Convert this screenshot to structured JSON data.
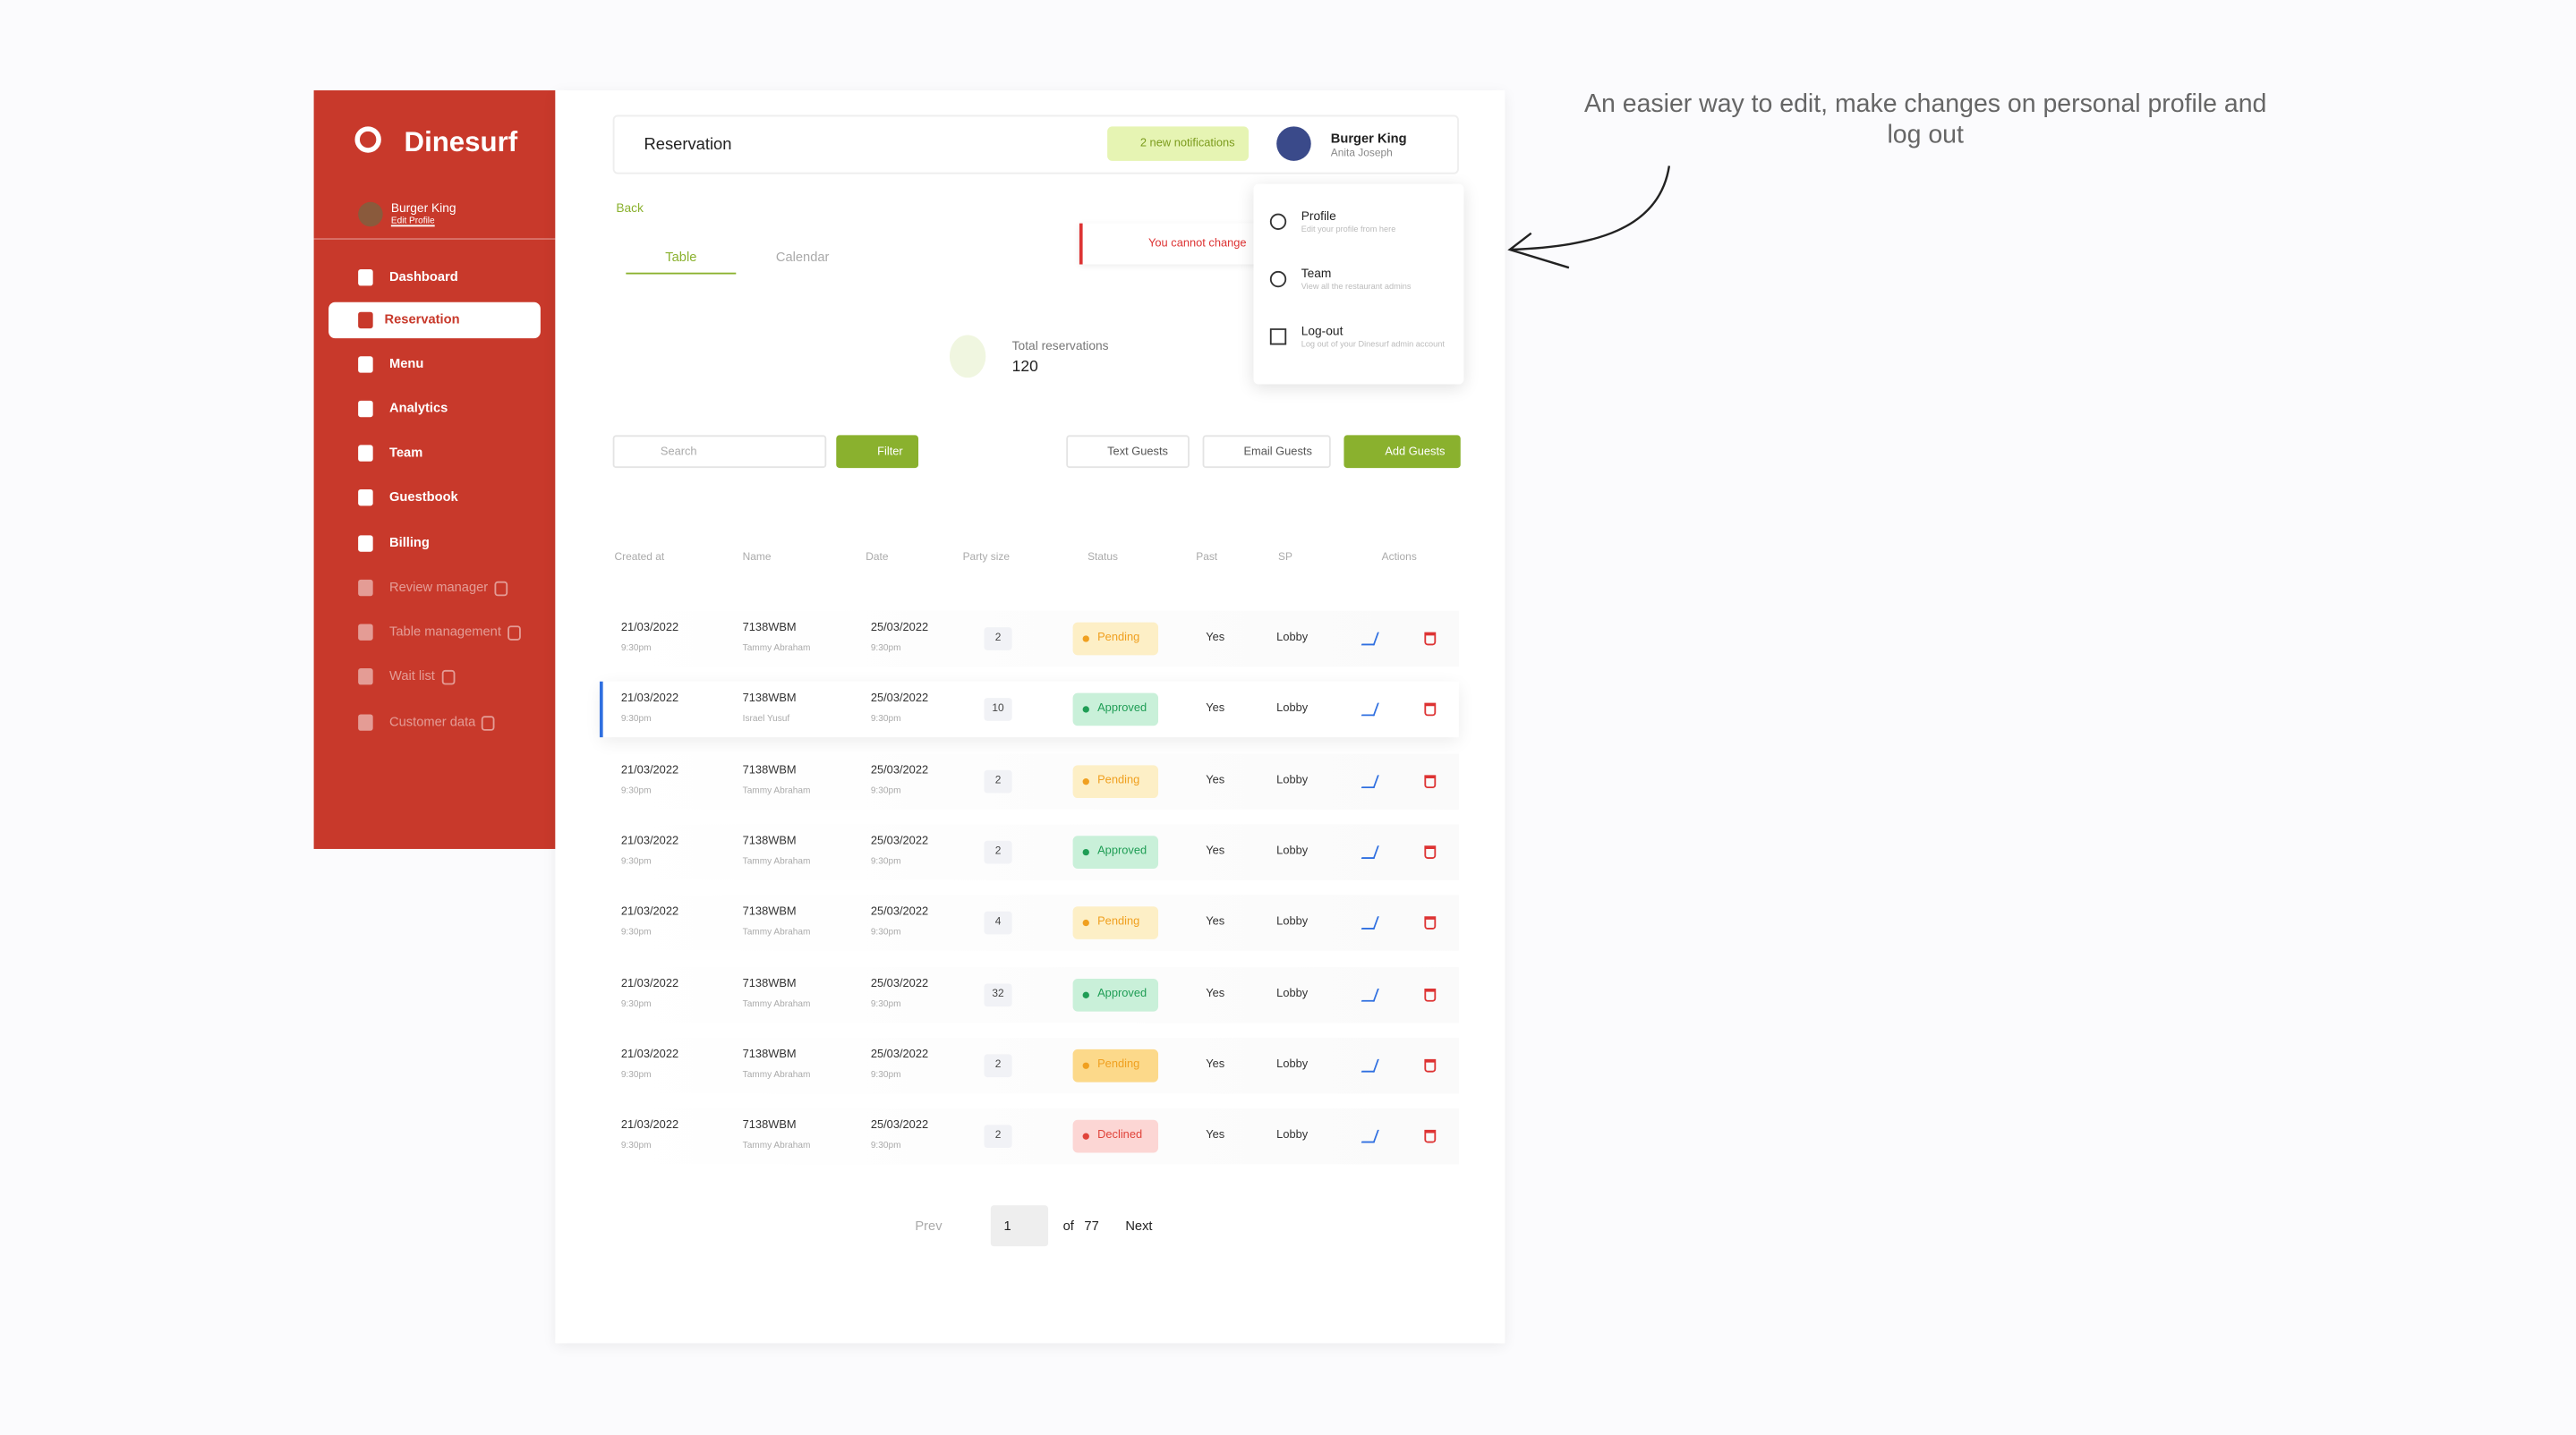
{
  "sidebar": {
    "brand": "Dinesurf",
    "user": "Burger King",
    "edit": "Edit Profile",
    "nav": [
      {
        "label": "Dashboard"
      },
      {
        "label": "Reservation",
        "active": true
      },
      {
        "label": "Menu"
      },
      {
        "label": "Analytics"
      },
      {
        "label": "Team"
      },
      {
        "label": "Guestbook"
      },
      {
        "label": "Billing"
      },
      {
        "label": "Review manager",
        "locked": true
      },
      {
        "label": "Table management",
        "locked": true
      },
      {
        "label": "Wait list",
        "locked": true
      },
      {
        "label": "Customer data",
        "locked": true
      }
    ]
  },
  "header": {
    "title": "Reservation",
    "notifications": "2 new notifications",
    "user": "Burger King",
    "role": "Anita Joseph"
  },
  "dropdown": [
    {
      "title": "Profile",
      "desc": "Edit your profile from here"
    },
    {
      "title": "Team",
      "desc": "View all the restaurant admins"
    },
    {
      "title": "Log-out",
      "desc": "Log out of your Dinesurf admin account"
    }
  ],
  "back": "Back",
  "tabs": [
    "Table",
    "Calendar"
  ],
  "alert": "You cannot change",
  "total": {
    "label": "Total reservations",
    "value": 120
  },
  "toolbar": {
    "search": "Search",
    "filter": "Filter",
    "text": "Text Guests",
    "email": "Email Guests",
    "add": "Add Guests"
  },
  "table": {
    "columns": [
      "Created at",
      "Name",
      "Date",
      "Party size",
      "Status",
      "Past",
      "SP",
      "Actions"
    ],
    "rows": [
      {
        "created": "21/03/2022",
        "created_time": "9:30pm",
        "code": "7138WBM",
        "guest": "Tammy Abraham",
        "date": "25/03/2022",
        "time": "9:30pm",
        "party": 2,
        "status": "Pending",
        "status_color": "#f0a020",
        "status_bg": "#fdefc6",
        "past": "Yes",
        "sp": "Lobby"
      },
      {
        "created": "21/03/2022",
        "created_time": "9:30pm",
        "code": "7138WBM",
        "guest": "Israel Yusuf",
        "date": "25/03/2022",
        "time": "9:30pm",
        "party": 10,
        "status": "Approved",
        "status_color": "#1f9d55",
        "status_bg": "#c9f0d9",
        "past": "Yes",
        "sp": "Lobby",
        "highlighted": true
      },
      {
        "created": "21/03/2022",
        "created_time": "9:30pm",
        "code": "7138WBM",
        "guest": "Tammy Abraham",
        "date": "25/03/2022",
        "time": "9:30pm",
        "party": 2,
        "status": "Pending",
        "status_color": "#f0a020",
        "status_bg": "#fdefc6",
        "past": "Yes",
        "sp": "Lobby"
      },
      {
        "created": "21/03/2022",
        "created_time": "9:30pm",
        "code": "7138WBM",
        "guest": "Tammy Abraham",
        "date": "25/03/2022",
        "time": "9:30pm",
        "party": 2,
        "status": "Approved",
        "status_color": "#1f9d55",
        "status_bg": "#c9f0d9",
        "past": "Yes",
        "sp": "Lobby"
      },
      {
        "created": "21/03/2022",
        "created_time": "9:30pm",
        "code": "7138WBM",
        "guest": "Tammy Abraham",
        "date": "25/03/2022",
        "time": "9:30pm",
        "party": 4,
        "status": "Pending",
        "status_color": "#f0a020",
        "status_bg": "#fdefc6",
        "past": "Yes",
        "sp": "Lobby"
      },
      {
        "created": "21/03/2022",
        "created_time": "9:30pm",
        "code": "7138WBM",
        "guest": "Tammy Abraham",
        "date": "25/03/2022",
        "time": "9:30pm",
        "party": 32,
        "status": "Approved",
        "status_color": "#1f9d55",
        "status_bg": "#c9f0d9",
        "past": "Yes",
        "sp": "Lobby"
      },
      {
        "created": "21/03/2022",
        "created_time": "9:30pm",
        "code": "7138WBM",
        "guest": "Tammy Abraham",
        "date": "25/03/2022",
        "time": "9:30pm",
        "party": 2,
        "status": "Pending",
        "status_color": "#f0a020",
        "status_bg": "#fcd98a",
        "past": "Yes",
        "sp": "Lobby"
      },
      {
        "created": "21/03/2022",
        "created_time": "9:30pm",
        "code": "7138WBM",
        "guest": "Tammy Abraham",
        "date": "25/03/2022",
        "time": "9:30pm",
        "party": 2,
        "status": "Declined",
        "status_color": "#e0433a",
        "status_bg": "#fcd6d4",
        "past": "Yes",
        "sp": "Lobby"
      }
    ]
  },
  "pagination": {
    "prev": "Prev",
    "page": 1,
    "of": "of",
    "total": 77,
    "next": "Next"
  },
  "annotation": "An easier way to edit, make changes on personal profile and log out"
}
